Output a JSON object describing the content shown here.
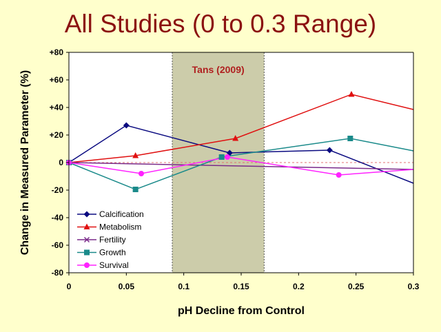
{
  "chart_data": {
    "type": "line",
    "title": "All Studies (0 to 0.3 Range)",
    "xlabel": "pH Decline from Control",
    "ylabel": "Change in Measured Parameter (%)",
    "xlim": [
      0,
      0.3
    ],
    "ylim": [
      -80,
      80
    ],
    "x_ticks": [
      "0",
      "0.05",
      "0.1",
      "0.15",
      "0.2",
      "0.25",
      "0.3"
    ],
    "y_ticks": [
      "+80",
      "+60",
      "+40",
      "+20",
      "0",
      "-20",
      "-40",
      "-60",
      "-80"
    ],
    "shaded_region": {
      "x_range": [
        0.09,
        0.17
      ],
      "label": "Tans (2009)",
      "color": "#CCCCAA"
    },
    "reference_line": {
      "y": 0,
      "style": "dashed",
      "color": "#E07070"
    },
    "legend_position": "bottom-left",
    "series": [
      {
        "name": "Calcification",
        "color": "#0A0A80",
        "marker": "diamond",
        "x": [
          0,
          0.05,
          0.14,
          0.227,
          0.3
        ],
        "y": [
          0,
          27,
          7,
          9,
          -15
        ],
        "marked": [
          true,
          true,
          true,
          true,
          false
        ]
      },
      {
        "name": "Metabolism",
        "color": "#E01010",
        "marker": "triangle",
        "x": [
          0,
          0.058,
          0.145,
          0.246,
          0.3
        ],
        "y": [
          0,
          5,
          17.5,
          49.5,
          38.5
        ],
        "marked": [
          true,
          true,
          true,
          true,
          false
        ]
      },
      {
        "name": "Fertility",
        "color": "#7A2A8A",
        "marker": "x",
        "x": [
          0,
          0.3
        ],
        "y": [
          0,
          -5
        ],
        "marked": [
          true,
          false
        ]
      },
      {
        "name": "Growth",
        "color": "#1A8A8A",
        "marker": "square",
        "x": [
          0,
          0.058,
          0.133,
          0.245,
          0.3
        ],
        "y": [
          0,
          -19.5,
          4,
          17.5,
          8.5
        ],
        "marked": [
          true,
          true,
          true,
          true,
          false
        ]
      },
      {
        "name": "Survival",
        "color": "#FF22FF",
        "marker": "circle",
        "x": [
          0,
          0.063,
          0.138,
          0.235,
          0.3
        ],
        "y": [
          0,
          -8,
          4,
          -9,
          -5
        ],
        "marked": [
          true,
          true,
          true,
          true,
          false
        ]
      }
    ]
  }
}
